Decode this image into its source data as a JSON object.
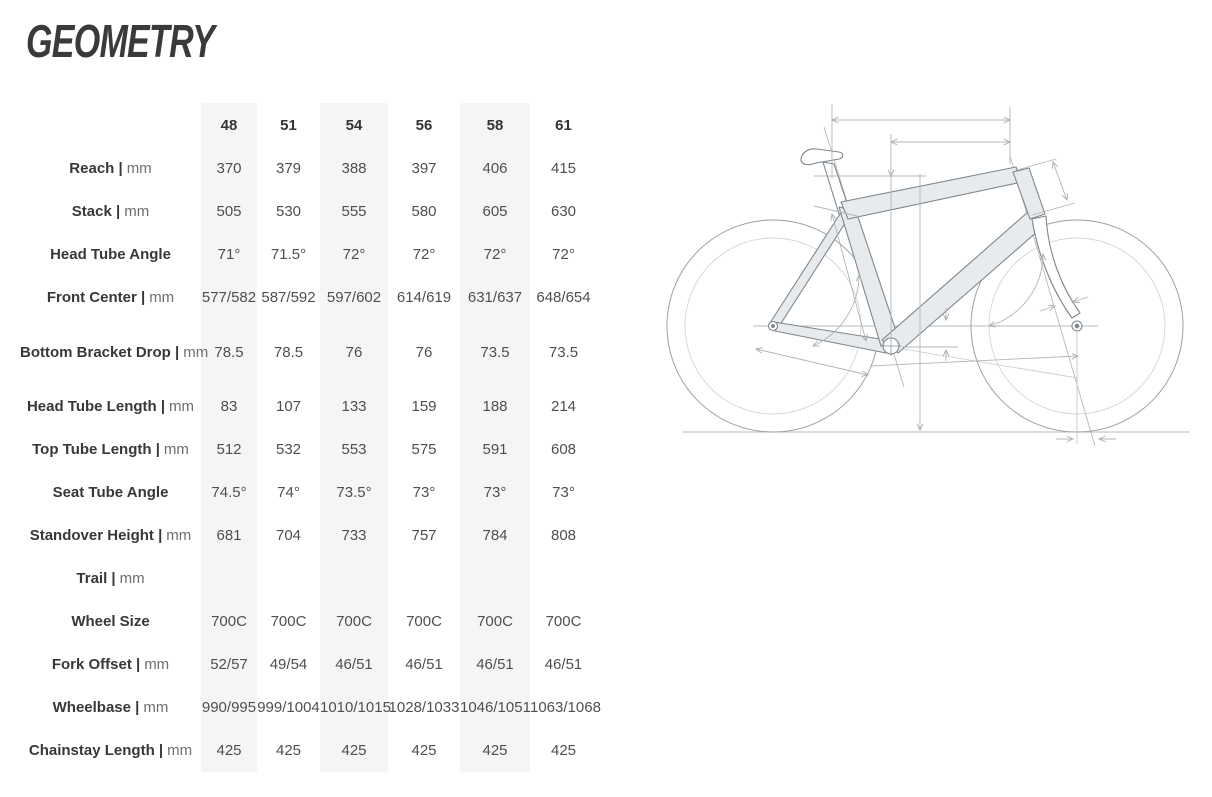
{
  "page": {
    "title": "GEOMETRY"
  },
  "table": {
    "size_columns": [
      "48",
      "51",
      "54",
      "56",
      "58",
      "61"
    ],
    "rows": [
      {
        "label": "Reach",
        "unit": "mm",
        "values": [
          "370",
          "379",
          "388",
          "397",
          "406",
          "415"
        ]
      },
      {
        "label": "Stack",
        "unit": "mm",
        "values": [
          "505",
          "530",
          "555",
          "580",
          "605",
          "630"
        ]
      },
      {
        "label": "Head Tube Angle",
        "unit": "",
        "values": [
          "71°",
          "71.5°",
          "72°",
          "72°",
          "72°",
          "72°"
        ]
      },
      {
        "label": "Front Center",
        "unit": "mm",
        "values": [
          "577/582",
          "587/592",
          "597/602",
          "614/619",
          "631/637",
          "648/654"
        ]
      },
      {
        "label": "Bottom Bracket Drop",
        "unit": "mm",
        "values": [
          "78.5",
          "78.5",
          "76",
          "76",
          "73.5",
          "73.5"
        ]
      },
      {
        "label": "Head Tube Length",
        "unit": "mm",
        "values": [
          "83",
          "107",
          "133",
          "159",
          "188",
          "214"
        ]
      },
      {
        "label": "Top Tube Length",
        "unit": "mm",
        "values": [
          "512",
          "532",
          "553",
          "575",
          "591",
          "608"
        ]
      },
      {
        "label": "Seat Tube Angle",
        "unit": "",
        "values": [
          "74.5°",
          "74°",
          "73.5°",
          "73°",
          "73°",
          "73°"
        ]
      },
      {
        "label": "Standover Height",
        "unit": "mm",
        "values": [
          "681",
          "704",
          "733",
          "757",
          "784",
          "808"
        ]
      },
      {
        "label": "Trail",
        "unit": "mm",
        "values": [
          "",
          "",
          "",
          "",
          "",
          ""
        ]
      },
      {
        "label": "Wheel Size",
        "unit": "",
        "values": [
          "700C",
          "700C",
          "700C",
          "700C",
          "700C",
          "700C"
        ]
      },
      {
        "label": "Fork Offset",
        "unit": "mm",
        "values": [
          "52/57",
          "49/54",
          "46/51",
          "46/51",
          "46/51",
          "46/51"
        ]
      },
      {
        "label": "Wheelbase",
        "unit": "mm",
        "values": [
          "990/995",
          "999/1004",
          "1010/1015",
          "1028/1033",
          "1046/1051",
          "1063/1068"
        ]
      },
      {
        "label": "Chainstay Length",
        "unit": "mm",
        "values": [
          "425",
          "425",
          "425",
          "425",
          "425",
          "425"
        ]
      }
    ]
  },
  "diagram": {
    "description": "bike frame geometry technical drawing"
  },
  "colors": {
    "title_text": "#3a3a3c",
    "header_text": "#353537",
    "label_text": "#38383a",
    "unit_text": "#6e6e70",
    "value_text": "#4f4f51",
    "column_stripe": "#f5f5f5",
    "frame_fill": "#e7ebed",
    "frame_stroke": "#7f868d",
    "construction_line": "#b6bbbf"
  }
}
